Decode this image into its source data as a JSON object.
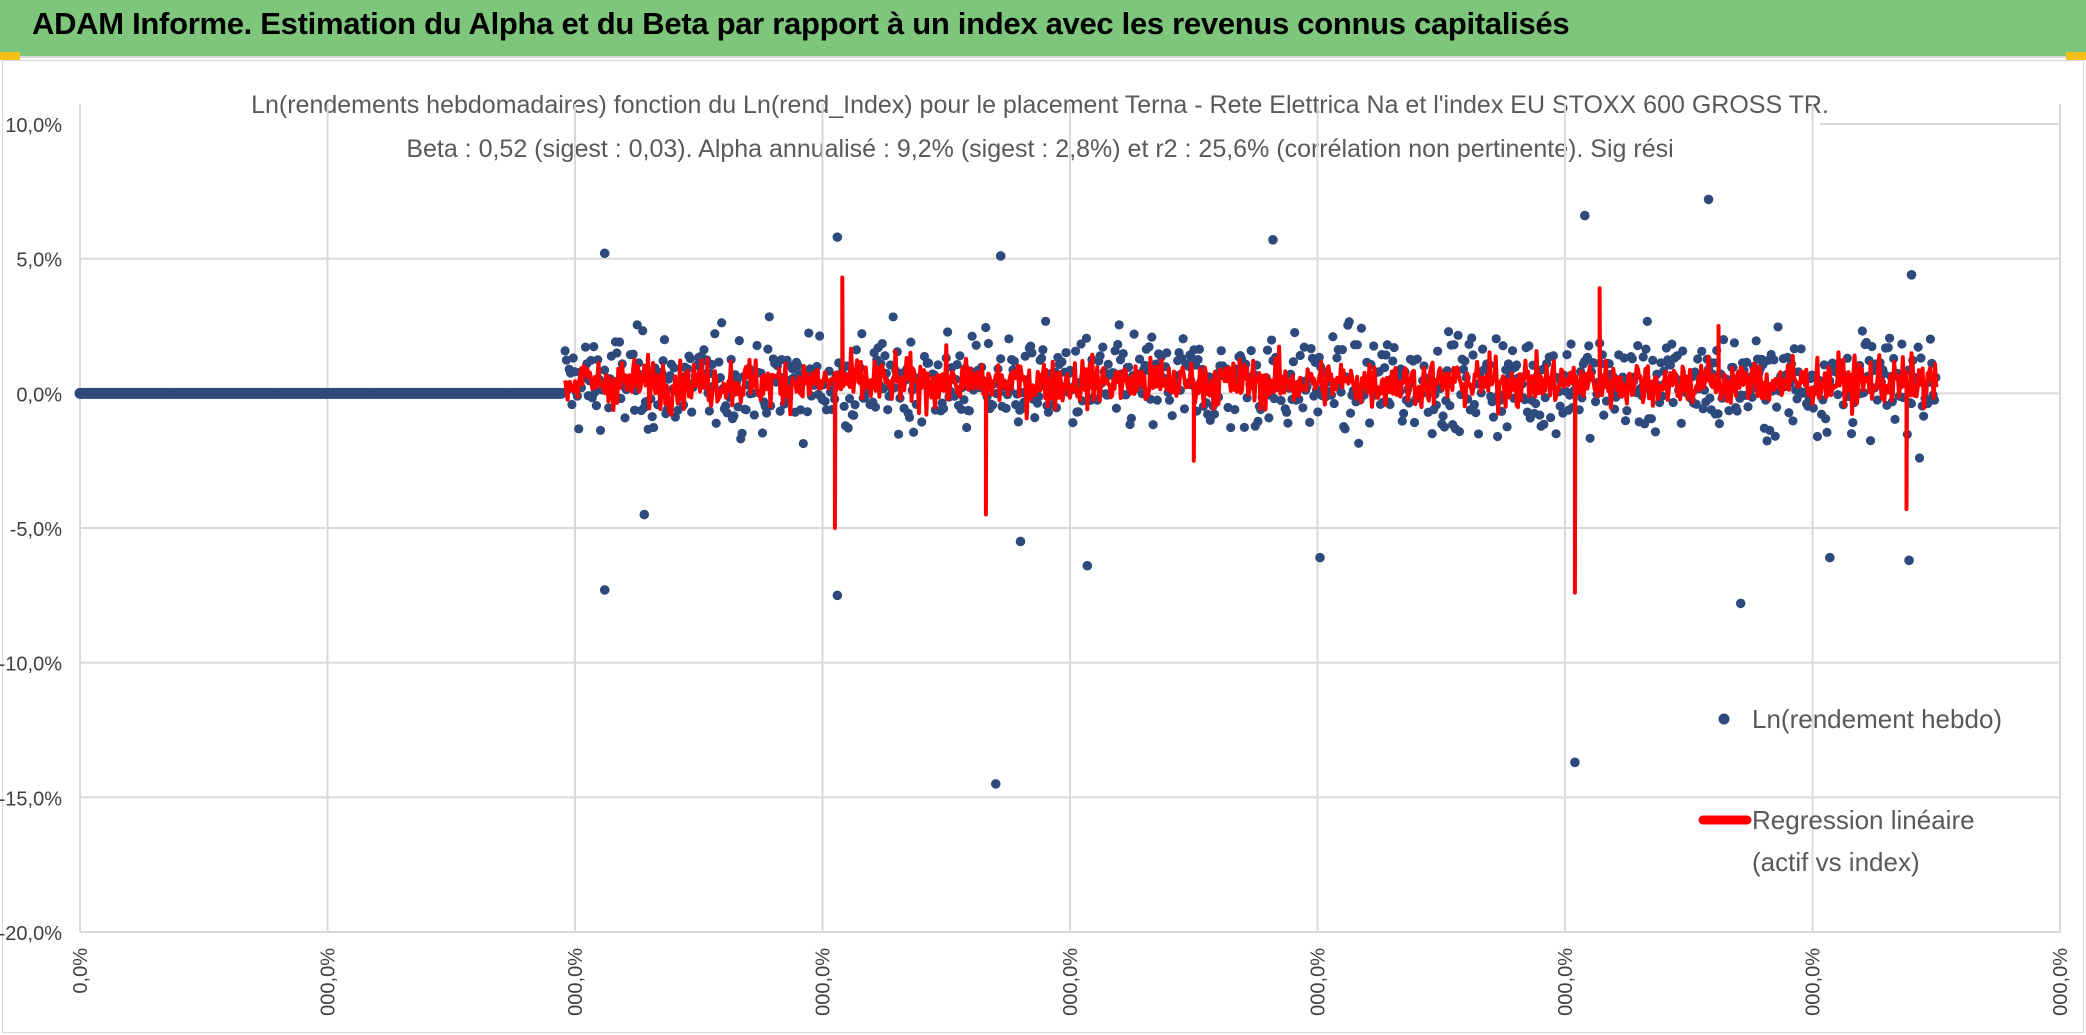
{
  "banner": {
    "title": "ADAM Informe. Estimation du Alpha et du Beta par rapport à un index avec les revenus connus capitalisés",
    "color": "#7dc67c"
  },
  "chart_data": {
    "type": "scatter",
    "title_line1": "Ln(rendements hebdomadaires) fonction du Ln(rend_Index) pour le placement Terna - Rete Elettrica Na et l'index EU STOXX 600 GROSS TR.",
    "title_line2": "Beta : 0,52 (sigest : 0,03). Alpha annualisé : 9,2% (sigest : 2,8%) et r2 : 25,6% (corrélation non pertinente). Sig rési",
    "xlabel": "",
    "ylabel": "",
    "ylim": [
      -20,
      10
    ],
    "xlim": [
      0,
      800
    ],
    "y_ticks": [
      {
        "value": 10,
        "label": "10,0%"
      },
      {
        "value": 5,
        "label": "5,0%"
      },
      {
        "value": 0,
        "label": "0,0%"
      },
      {
        "value": -5,
        "label": "-5,0%"
      },
      {
        "value": -10,
        "label": "-10,0%"
      },
      {
        "value": -15,
        "label": "-15,0%"
      },
      {
        "value": -20,
        "label": "-20,0%"
      }
    ],
    "x_ticks": [
      {
        "value": 0,
        "label": "0,0%"
      },
      {
        "value": 100,
        "label": "000,0%"
      },
      {
        "value": 200,
        "label": "000,0%"
      },
      {
        "value": 300,
        "label": "000,0%"
      },
      {
        "value": 400,
        "label": "000,0%"
      },
      {
        "value": 500,
        "label": "000,0%"
      },
      {
        "value": 600,
        "label": "000,0%"
      },
      {
        "value": 700,
        "label": "000,0%"
      },
      {
        "value": 800,
        "label": "000,0%"
      }
    ],
    "grid": true,
    "legend_position": "right",
    "series": [
      {
        "name": "Ln(rendement hebdo)",
        "kind": "scatter",
        "color": "#2e4a7d",
        "flat_segment": {
          "x_start": 0,
          "x_end": 195,
          "y": 0
        },
        "notable_points": [
          {
            "x": 212,
            "y": 5.2
          },
          {
            "x": 212,
            "y": -7.3
          },
          {
            "x": 228,
            "y": -4.5
          },
          {
            "x": 306,
            "y": 5.8
          },
          {
            "x": 306,
            "y": -7.5
          },
          {
            "x": 370,
            "y": -14.5
          },
          {
            "x": 372,
            "y": 5.1
          },
          {
            "x": 380,
            "y": -5.5
          },
          {
            "x": 407,
            "y": -6.4
          },
          {
            "x": 482,
            "y": 5.7
          },
          {
            "x": 501,
            "y": -6.1
          },
          {
            "x": 604,
            "y": -13.7
          },
          {
            "x": 608,
            "y": 6.6
          },
          {
            "x": 658,
            "y": 7.2
          },
          {
            "x": 671,
            "y": -7.8
          },
          {
            "x": 707,
            "y": -6.1
          },
          {
            "x": 740,
            "y": 4.4
          },
          {
            "x": 739,
            "y": -6.2
          }
        ]
      },
      {
        "name": "Regression linéaire (actif vs index)",
        "kind": "line",
        "color": "#ff0000",
        "x_start": 196,
        "x_end": 750,
        "notable_points": [
          {
            "x": 308,
            "y": 4.3
          },
          {
            "x": 305,
            "y": -5.0
          },
          {
            "x": 366,
            "y": -4.5
          },
          {
            "x": 450,
            "y": -2.5
          },
          {
            "x": 604,
            "y": -7.4
          },
          {
            "x": 614,
            "y": 3.9
          },
          {
            "x": 662,
            "y": 2.5
          },
          {
            "x": 738,
            "y": -4.3
          }
        ]
      }
    ],
    "legend": [
      {
        "label": "Ln(rendement hebdo)",
        "color": "#2e4a7d",
        "marker": "dot"
      },
      {
        "label_line1": "Regression linéaire",
        "label_line2": "(actif vs index)",
        "color": "#ff0000",
        "marker": "line"
      }
    ]
  }
}
